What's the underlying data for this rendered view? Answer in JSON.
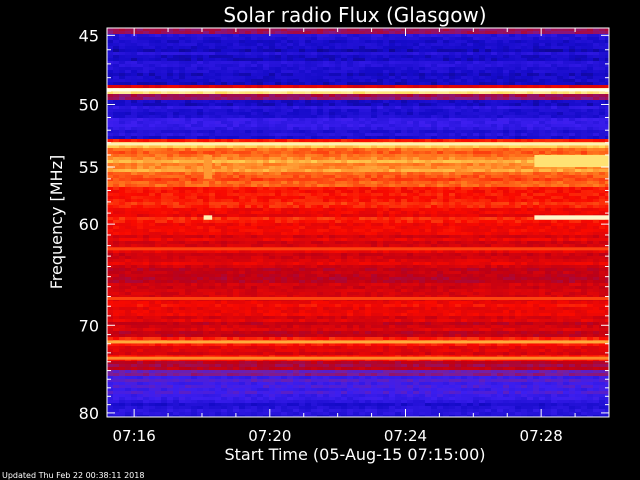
{
  "chart_data": {
    "type": "heatmap",
    "title": "Solar radio Flux (Glasgow)",
    "xlabel": "Start Time (05-Aug-15 07:15:00)",
    "ylabel": "Frequency [MHz]",
    "x_ticks": [
      "07:16",
      "07:20",
      "07:24",
      "07:28"
    ],
    "x_tick_minutes": [
      1,
      5,
      9,
      13
    ],
    "xlim_minutes": [
      0.2,
      15.0
    ],
    "y_ticks": [
      "45",
      "50",
      "55",
      "60",
      "70",
      "80"
    ],
    "y_tick_values": [
      45,
      50,
      55,
      60,
      70,
      80
    ],
    "ylim": [
      44.5,
      80.5
    ],
    "y_scale": "log",
    "y_direction": "top-to-bottom",
    "colormap": "black-blue-red-yellow-white",
    "frequency_bands_mhz": [
      {
        "f_start": 44.5,
        "f_end": 45.0,
        "level": 0.45
      },
      {
        "f_start": 45.0,
        "f_end": 48.5,
        "level": 0.2
      },
      {
        "f_start": 48.5,
        "f_end": 48.8,
        "level": 0.55
      },
      {
        "f_start": 48.8,
        "f_end": 49.2,
        "level": 0.92
      },
      {
        "f_start": 49.2,
        "f_end": 49.6,
        "level": 0.45
      },
      {
        "f_start": 49.6,
        "f_end": 51.0,
        "level": 0.22
      },
      {
        "f_start": 51.0,
        "f_end": 52.0,
        "level": 0.28
      },
      {
        "f_start": 52.0,
        "f_end": 52.6,
        "level": 0.2
      },
      {
        "f_start": 52.6,
        "f_end": 53.0,
        "level": 0.62
      },
      {
        "f_start": 53.0,
        "f_end": 53.4,
        "level": 0.82
      },
      {
        "f_start": 53.4,
        "f_end": 54.2,
        "level": 0.75
      },
      {
        "f_start": 54.2,
        "f_end": 55.5,
        "level": 0.8
      },
      {
        "f_start": 55.5,
        "f_end": 56.8,
        "level": 0.72
      },
      {
        "f_start": 56.8,
        "f_end": 59.0,
        "level": 0.66
      },
      {
        "f_start": 59.0,
        "f_end": 61.0,
        "level": 0.64
      },
      {
        "f_start": 61.0,
        "f_end": 64.0,
        "level": 0.58
      },
      {
        "f_start": 64.0,
        "f_end": 67.5,
        "level": 0.55
      },
      {
        "f_start": 67.5,
        "f_end": 69.5,
        "level": 0.6
      },
      {
        "f_start": 69.5,
        "f_end": 71.2,
        "level": 0.56
      },
      {
        "f_start": 71.2,
        "f_end": 72.2,
        "level": 0.68
      },
      {
        "f_start": 72.2,
        "f_end": 73.2,
        "level": 0.56
      },
      {
        "f_start": 73.2,
        "f_end": 74.0,
        "level": 0.62
      },
      {
        "f_start": 74.0,
        "f_end": 74.8,
        "level": 0.5
      },
      {
        "f_start": 74.8,
        "f_end": 75.6,
        "level": 0.4
      },
      {
        "f_start": 75.6,
        "f_end": 77.2,
        "level": 0.33
      },
      {
        "f_start": 77.2,
        "f_end": 78.6,
        "level": 0.3
      },
      {
        "f_start": 78.6,
        "f_end": 80.5,
        "level": 0.24
      }
    ],
    "interference_lines_mhz": [
      {
        "f": 48.9,
        "level": 1.0
      },
      {
        "f": 53.1,
        "level": 0.95
      },
      {
        "f": 62.3,
        "level": 0.7
      },
      {
        "f": 67.2,
        "level": 0.7
      },
      {
        "f": 71.8,
        "level": 0.82
      },
      {
        "f": 73.6,
        "level": 0.78
      }
    ],
    "bursts": [
      {
        "t_start": 3.05,
        "t_end": 3.3,
        "f_start": 54.0,
        "f_end": 56.0,
        "level": 0.8
      },
      {
        "t_start": 3.05,
        "t_end": 3.3,
        "f_start": 59.2,
        "f_end": 59.6,
        "level": 0.95
      },
      {
        "t_start": 12.8,
        "t_end": 15.0,
        "f_start": 54.0,
        "f_end": 55.0,
        "level": 0.9
      },
      {
        "t_start": 12.8,
        "t_end": 15.0,
        "f_start": 59.2,
        "f_end": 59.6,
        "level": 0.97
      }
    ],
    "grid": false,
    "legend": "none"
  },
  "footer": {
    "updated_text": "Updated Thu Feb 22 00:38:11 2018"
  },
  "colors": {
    "background": "#000000",
    "axis_and_text": "#ffffff"
  }
}
